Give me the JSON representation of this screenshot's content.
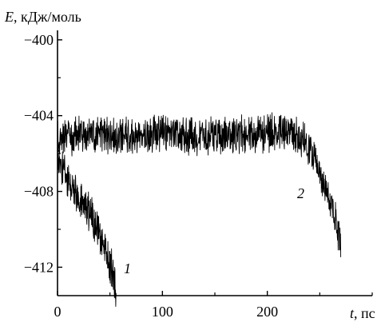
{
  "chart_data": {
    "type": "line",
    "ylabel": {
      "symbol": "E",
      "unit": ", кДж/моль"
    },
    "xlabel": {
      "symbol": "t",
      "unit": ", пс"
    },
    "xlim": [
      0,
      300
    ],
    "ylim": [
      -413.5,
      -399.5
    ],
    "x_major_ticks": [
      0,
      100,
      200
    ],
    "x_minor_ticks": [
      50,
      150,
      250,
      300
    ],
    "y_major_ticks": [
      -400,
      -404,
      -408,
      -412
    ],
    "y_minor_ticks": [
      -402,
      -406,
      -410
    ],
    "x_tick_labels": [
      "0",
      "100",
      "200"
    ],
    "y_tick_labels": [
      "−400",
      "−404",
      "−408",
      "−412"
    ],
    "grid": false,
    "series": [
      {
        "name": "1",
        "style": "noisy",
        "color": "#000000",
        "anchors": [
          [
            0,
            -406.2
          ],
          [
            10,
            -407.5
          ],
          [
            20,
            -408.4
          ],
          [
            30,
            -409.0
          ],
          [
            40,
            -410.2
          ],
          [
            50,
            -411.8
          ],
          [
            56,
            -413.2
          ]
        ]
      },
      {
        "name": "2",
        "style": "noisy",
        "color": "#000000",
        "anchors": [
          [
            0,
            -405.2
          ],
          [
            20,
            -405.0
          ],
          [
            60,
            -405.1
          ],
          [
            100,
            -405.0
          ],
          [
            150,
            -405.1
          ],
          [
            200,
            -404.9
          ],
          [
            220,
            -404.9
          ],
          [
            235,
            -405.3
          ],
          [
            245,
            -406.2
          ],
          [
            255,
            -407.6
          ],
          [
            262,
            -408.8
          ],
          [
            270,
            -410.8
          ]
        ]
      }
    ]
  }
}
